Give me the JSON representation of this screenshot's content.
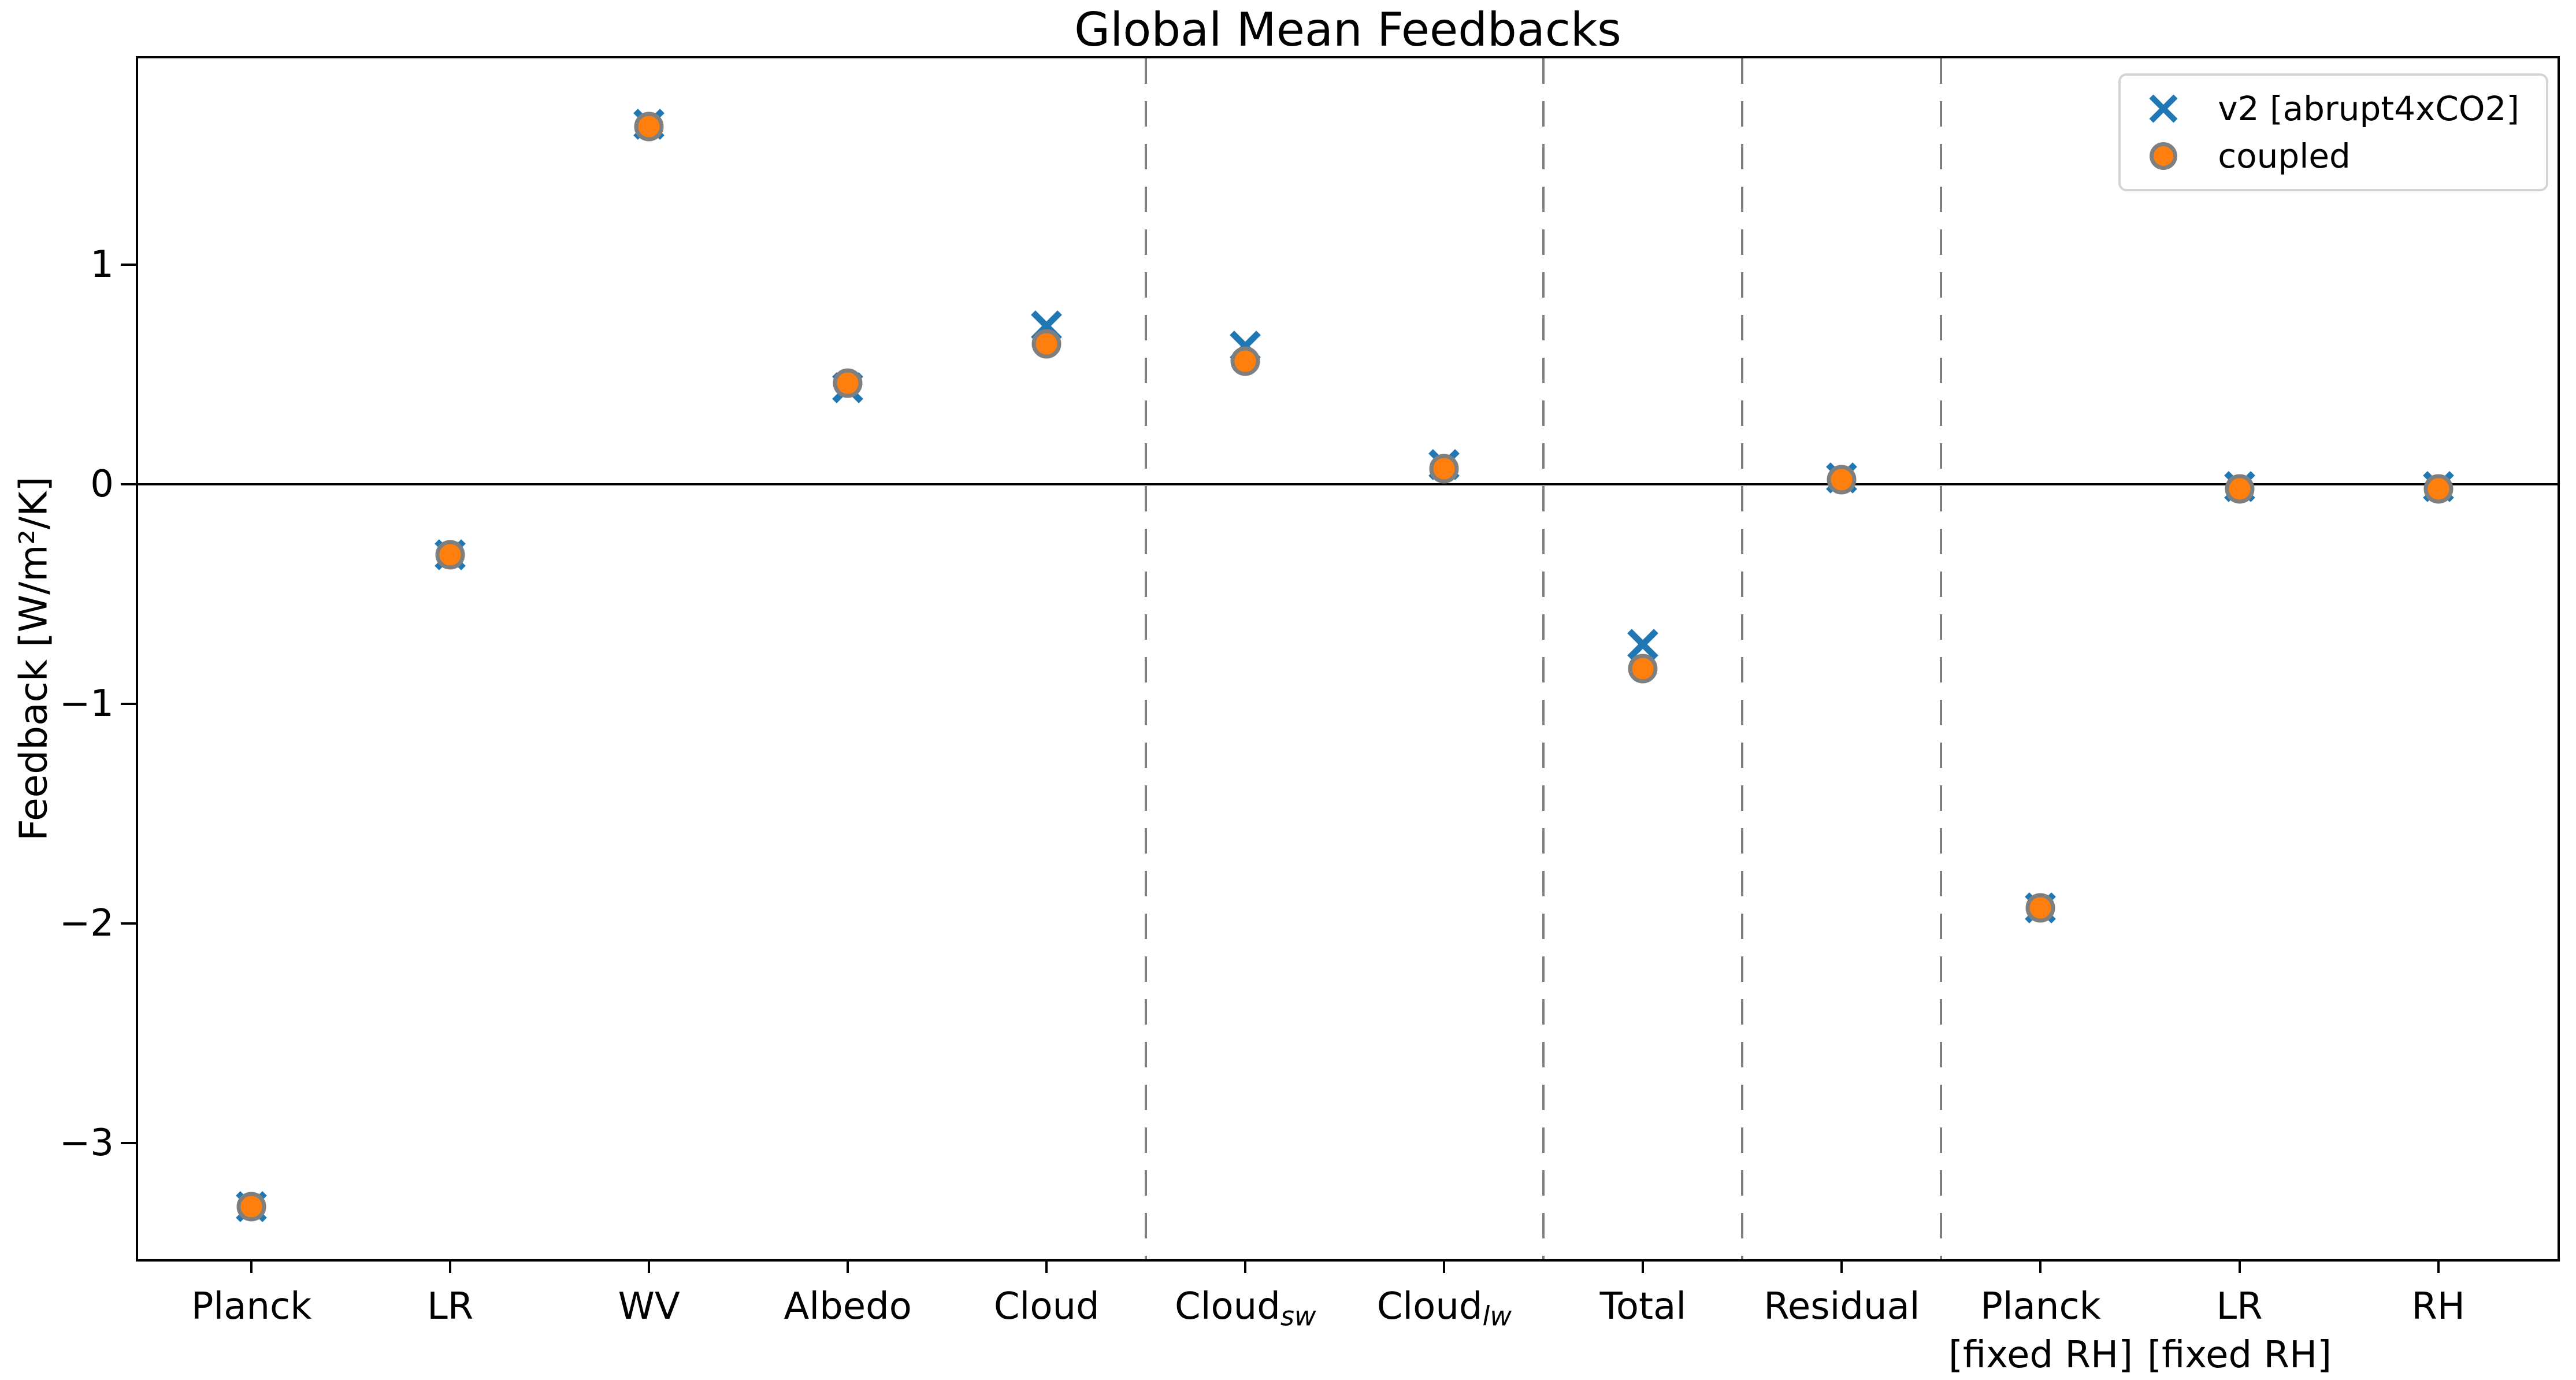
{
  "chart_data": {
    "type": "scatter",
    "title": "Global Mean Feedbacks",
    "ylabel": "Feedback [W/m²/K]",
    "xlabel": "",
    "ylim": [
      -3.53,
      1.94
    ],
    "yticks": [
      1,
      0,
      -1,
      -2,
      -3
    ],
    "ytick_labels": [
      "1",
      "0",
      "−1",
      "−2",
      "−3"
    ],
    "grid": false,
    "zero_line": true,
    "separators_x": [
      4.5,
      6.5,
      7.5,
      8.5
    ],
    "separator_color": "#7f7f7f",
    "categories": [
      {
        "label": "Planck",
        "subscript": "",
        "second_line": ""
      },
      {
        "label": "LR",
        "subscript": "",
        "second_line": ""
      },
      {
        "label": "WV",
        "subscript": "",
        "second_line": ""
      },
      {
        "label": "Albedo",
        "subscript": "",
        "second_line": ""
      },
      {
        "label": "Cloud",
        "subscript": "",
        "second_line": ""
      },
      {
        "label": "Cloud",
        "subscript": "sw",
        "second_line": ""
      },
      {
        "label": "Cloud",
        "subscript": "lw",
        "second_line": ""
      },
      {
        "label": "Total",
        "subscript": "",
        "second_line": ""
      },
      {
        "label": "Residual",
        "subscript": "",
        "second_line": ""
      },
      {
        "label": "Planck",
        "subscript": "",
        "second_line": "[fixed RH]"
      },
      {
        "label": "LR",
        "subscript": "",
        "second_line": "[fixed RH]"
      },
      {
        "label": "RH",
        "subscript": "",
        "second_line": ""
      }
    ],
    "series": [
      {
        "name": "v2 [abrupt4xCO2]",
        "marker": "x",
        "color": "#1f77b4",
        "values": [
          -3.29,
          -0.32,
          1.64,
          0.44,
          0.72,
          0.63,
          0.09,
          -0.73,
          0.03,
          -1.93,
          -0.01,
          -0.01
        ]
      },
      {
        "name": "coupled",
        "marker": "circle",
        "color": "#ff7f0e",
        "edge_color": "#7f7f7f",
        "values": [
          -3.29,
          -0.32,
          1.63,
          0.46,
          0.64,
          0.56,
          0.07,
          -0.84,
          0.02,
          -1.93,
          -0.02,
          -0.02
        ]
      }
    ],
    "legend": {
      "position": "upper right"
    }
  }
}
